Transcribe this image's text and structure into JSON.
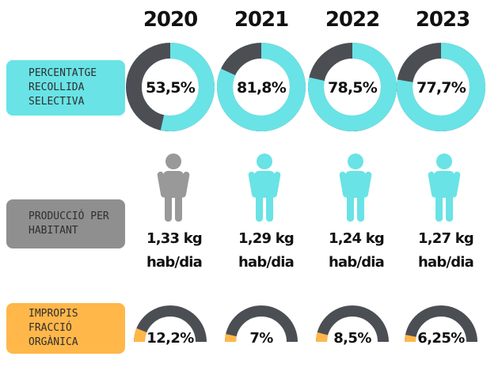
{
  "years": [
    "2020",
    "2021",
    "2022",
    "2023"
  ],
  "rows": {
    "recycling_label": "PERCENTATGE RECOLLIDA SELECTIVA",
    "production_label": "PRODUCCIÓ PER HABITANT",
    "impurities_label": "IMPROPIS FRACCIÓ ORGÀNICA"
  },
  "colors": {
    "teal": "#69e3e6",
    "dark": "#4b4f54",
    "gray_person": "#999999",
    "orange": "#ffb74a"
  },
  "chart_data": [
    {
      "type": "pie",
      "title": "PERCENTATGE RECOLLIDA SELECTIVA",
      "categories": [
        "2020",
        "2021",
        "2022",
        "2023"
      ],
      "values": [
        53.5,
        81.8,
        78.5,
        77.7
      ],
      "labels": [
        "53,5%",
        "81,8%",
        "78,5%",
        "77,7%"
      ]
    },
    {
      "type": "table",
      "title": "PRODUCCIÓ PER HABITANT",
      "categories": [
        "2020",
        "2021",
        "2022",
        "2023"
      ],
      "values": [
        1.33,
        1.29,
        1.24,
        1.27
      ],
      "labels": [
        "1,33 kg",
        "1,29 kg",
        "1,24 kg",
        "1,27 kg"
      ],
      "unit": "hab/dia"
    },
    {
      "type": "pie",
      "title": "IMPROPIS FRACCIÓ ORGÀNICA",
      "categories": [
        "2020",
        "2021",
        "2022",
        "2023"
      ],
      "values": [
        12.2,
        7,
        8.5,
        6.25
      ],
      "labels": [
        "12,2%",
        "7%",
        "8,5%",
        "6,25%"
      ]
    }
  ]
}
